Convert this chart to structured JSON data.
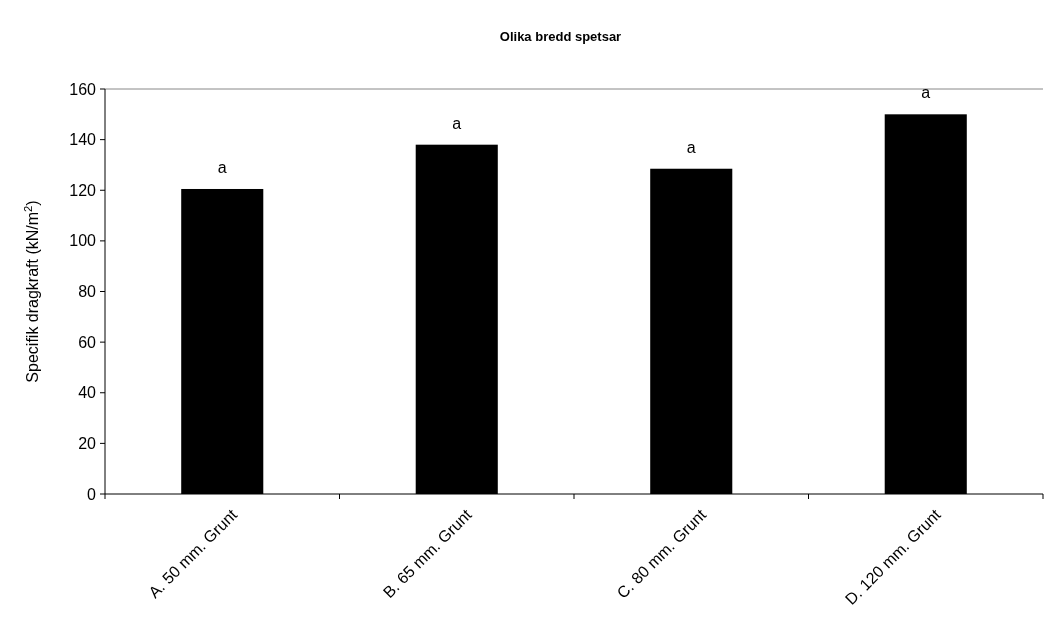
{
  "chart_data": {
    "type": "bar",
    "title": "Olika bredd spetsar",
    "ylabel": "Specifik dragkraft (kN/m$^{2}$)",
    "categories": [
      "A. 50 mm. Grunt",
      "B. 65 mm. Grunt",
      "C. 80 mm. Grunt",
      "D. 120 mm. Grunt"
    ],
    "values": [
      120.5,
      138,
      128.5,
      150
    ],
    "color": "#000000",
    "ylim": [
      0,
      160
    ],
    "yticks": [
      0,
      20,
      40,
      60,
      80,
      100,
      120,
      140,
      160
    ],
    "grid": false,
    "annotations": [
      {
        "text": "a",
        "x": "A. 50 mm. Grunt",
        "y": 120.5
      },
      {
        "text": "a",
        "x": "B. 65 mm. Grunt",
        "y": 138
      },
      {
        "text": "a",
        "x": "C. 80 mm. Grunt",
        "y": 128.5
      },
      {
        "text": "a",
        "x": "D. 120 mm. Grunt",
        "y": 150
      }
    ]
  }
}
